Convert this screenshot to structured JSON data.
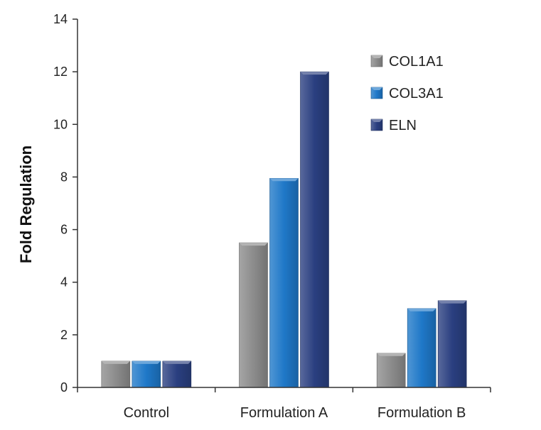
{
  "chart_data": {
    "type": "bar",
    "title": "",
    "xlabel": "",
    "ylabel": "Fold Regulation",
    "ylim": [
      0,
      14
    ],
    "yticks": [
      0,
      2,
      4,
      6,
      8,
      10,
      12,
      14
    ],
    "categories": [
      "Control",
      "Formulation A",
      "Formulation B"
    ],
    "series": [
      {
        "name": "COL1A1",
        "color": "#8c8c8c",
        "values": [
          1.0,
          5.5,
          1.3
        ]
      },
      {
        "name": "COL3A1",
        "color": "#1f78c8",
        "values": [
          1.0,
          7.95,
          3.0
        ]
      },
      {
        "name": "ELN",
        "color": "#2a3f80",
        "values": [
          1.0,
          12.0,
          3.3
        ]
      }
    ],
    "legend": "top-right",
    "grid": false
  }
}
